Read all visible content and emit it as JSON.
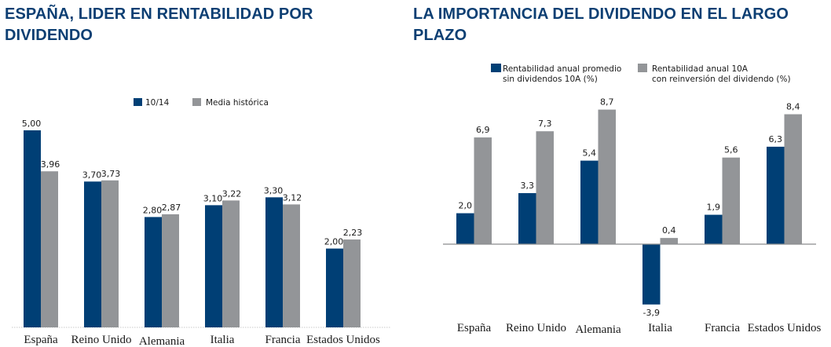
{
  "colors": {
    "primary": "#003f75",
    "secondary": "#939598",
    "title": "#0d3f73"
  },
  "chart_data": [
    {
      "type": "bar",
      "title": "ESPAÑA, LIDER EN RENTABILIDAD POR DIVIDENDO",
      "categories": [
        "España",
        "Reino Unido",
        "Alemania",
        "Italia",
        "Francia",
        "Estados Unidos"
      ],
      "series": [
        {
          "name": "10/14",
          "values": [
            5.0,
            3.7,
            2.8,
            3.1,
            3.3,
            2.0
          ],
          "labels": [
            "5,00",
            "3,70",
            "2,80",
            "3,10",
            "3,30",
            "2,00"
          ]
        },
        {
          "name": "Media histórica",
          "values": [
            3.96,
            3.73,
            2.87,
            3.22,
            3.12,
            2.23
          ],
          "labels": [
            "3,96",
            "3,73",
            "2,87",
            "3,22",
            "3,12",
            "2,23"
          ]
        }
      ],
      "xlabel": "",
      "ylabel": "",
      "ylim": [
        0,
        5
      ],
      "grid": false,
      "legend": "top-center"
    },
    {
      "type": "bar",
      "title": "LA IMPORTANCIA DEL DIVIDENDO EN EL LARGO PLAZO",
      "categories": [
        "España",
        "Reino Unido",
        "Alemania",
        "Italia",
        "Francia",
        "Estados Unidos"
      ],
      "series": [
        {
          "name": "Rentabilidad anual promedio sin dividendos 10A (%)",
          "legend_lines": [
            "Rentabilidad anual promedio",
            "sin dividendos 10A (%)"
          ],
          "values": [
            2.0,
            3.3,
            5.4,
            -3.9,
            1.9,
            6.3
          ],
          "labels": [
            "2,0",
            "3,3",
            "5,4",
            "-3,9",
            "1,9",
            "6,3"
          ]
        },
        {
          "name": "Rentabilidad anual 10A con reinversión del dividendo (%)",
          "legend_lines": [
            "Rentabilidad anual 10A",
            "con reinversión del dividendo (%)"
          ],
          "values": [
            6.9,
            7.3,
            8.7,
            0.4,
            5.6,
            8.4
          ],
          "labels": [
            "6,9",
            "7,3",
            "8,7",
            "0,4",
            "5,6",
            "8,4"
          ]
        }
      ],
      "xlabel": "",
      "ylabel": "",
      "ylim": [
        -3.9,
        8.7
      ],
      "grid": false,
      "legend": "top"
    }
  ]
}
